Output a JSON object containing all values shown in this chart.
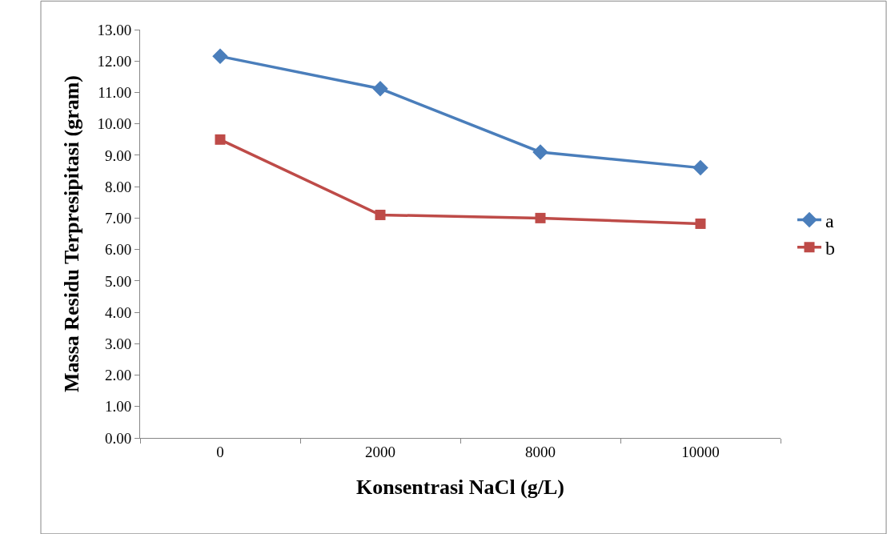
{
  "chart_data": {
    "type": "line",
    "xlabel": "Konsentrasi NaCl (g/L)",
    "ylabel": "Massa Residu Terpresipitasi (gram)",
    "categories": [
      "0",
      "2000",
      "8000",
      "10000"
    ],
    "series": [
      {
        "name": "a",
        "color": "#4a7ebb",
        "marker": "diamond",
        "values": [
          12.15,
          11.12,
          9.1,
          8.6
        ]
      },
      {
        "name": "b",
        "color": "#be4b48",
        "marker": "square",
        "values": [
          9.5,
          7.1,
          7.0,
          6.82
        ]
      }
    ],
    "ylim": [
      0,
      13
    ],
    "yticks": [
      {
        "value": 0,
        "label": "0.00"
      },
      {
        "value": 1,
        "label": "1.00"
      },
      {
        "value": 2,
        "label": "2.00"
      },
      {
        "value": 3,
        "label": "3.00"
      },
      {
        "value": 4,
        "label": "4.00"
      },
      {
        "value": 5,
        "label": "5.00"
      },
      {
        "value": 6,
        "label": "6.00"
      },
      {
        "value": 7,
        "label": "7.00"
      },
      {
        "value": 8,
        "label": "8.00"
      },
      {
        "value": 9,
        "label": "9.00"
      },
      {
        "value": 10,
        "label": "10.00"
      },
      {
        "value": 11,
        "label": "11.00"
      },
      {
        "value": 12,
        "label": "12.00"
      },
      {
        "value": 13,
        "label": "13.00"
      }
    ],
    "legend": "right",
    "line_style": "solid"
  }
}
